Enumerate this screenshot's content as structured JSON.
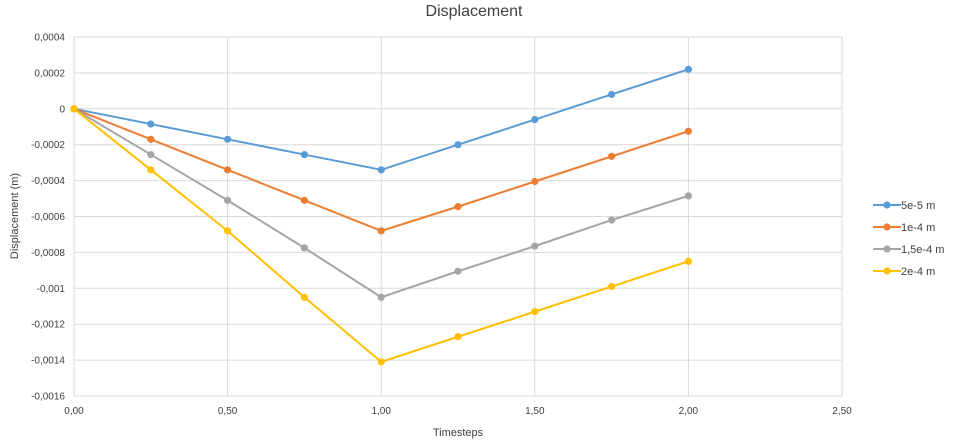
{
  "chart_data": {
    "type": "scatter",
    "title": "Displacement",
    "xlabel": "Timesteps",
    "ylabel": "Displacement (m)",
    "xlim": [
      0,
      2.5
    ],
    "ylim": [
      -0.0016,
      0.0004
    ],
    "x_ticks": [
      "0,00",
      "0,50",
      "1,00",
      "1,50",
      "2,00",
      "2,50"
    ],
    "y_ticks": [
      "0,0004",
      "0,0002",
      "0",
      "-0,0002",
      "-0,0004",
      "-0,0006",
      "-0,0008",
      "-0,001",
      "-0,0012",
      "-0,0014",
      "-0,0016"
    ],
    "grid": true,
    "legend_position": "right",
    "series": [
      {
        "name": "5e-5 m",
        "color": "#5b9bd5",
        "x": [
          0,
          0.25,
          0.5,
          0.75,
          1.0,
          1.25,
          1.5,
          1.75,
          2.0
        ],
        "y": [
          0,
          -8.5e-05,
          -0.00017,
          -0.000255,
          -0.00034,
          -0.0002,
          -6e-05,
          8e-05,
          0.00022
        ]
      },
      {
        "name": "1e-4 m",
        "color": "#ed7d31",
        "x": [
          0,
          0.25,
          0.5,
          0.75,
          1.0,
          1.25,
          1.5,
          1.75,
          2.0
        ],
        "y": [
          0,
          -0.00017,
          -0.00034,
          -0.00051,
          -0.00068,
          -0.000545,
          -0.000405,
          -0.000265,
          -0.000125
        ]
      },
      {
        "name": "1,5e-4 m",
        "color": "#a5a5a5",
        "x": [
          0,
          0.25,
          0.5,
          0.75,
          1.0,
          1.25,
          1.5,
          1.75,
          2.0
        ],
        "y": [
          0,
          -0.000255,
          -0.00051,
          -0.000775,
          -0.00105,
          -0.000905,
          -0.000765,
          -0.00062,
          -0.000485
        ]
      },
      {
        "name": "2e-4 m",
        "color": "#ffc000",
        "x": [
          0,
          0.25,
          0.5,
          0.75,
          1.0,
          1.25,
          1.5,
          1.75,
          2.0
        ],
        "y": [
          0,
          -0.00034,
          -0.00068,
          -0.00105,
          -0.00141,
          -0.00127,
          -0.00113,
          -0.00099,
          -0.00085
        ]
      }
    ]
  }
}
